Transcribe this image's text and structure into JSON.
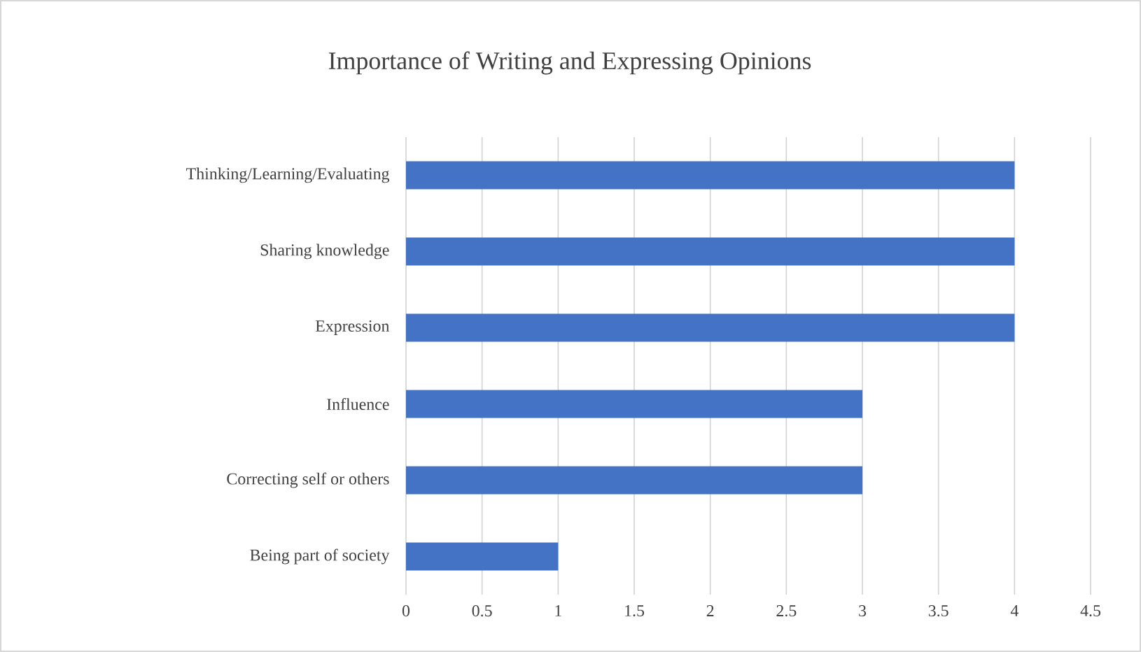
{
  "chart_data": {
    "type": "bar",
    "orientation": "horizontal",
    "title": "Importance of Writing  and Expressing Opinions",
    "categories": [
      "Thinking/Learning/Evaluating",
      "Sharing knowledge",
      "Expression",
      "Influence",
      "Correcting self or others",
      "Being part of society"
    ],
    "values": [
      4,
      4,
      4,
      3,
      3,
      1
    ],
    "color": "#4472c4",
    "xlim": [
      0,
      4.5
    ],
    "xticks": [
      0,
      0.5,
      1,
      1.5,
      2,
      2.5,
      3,
      3.5,
      4,
      4.5
    ],
    "grid": "x"
  }
}
